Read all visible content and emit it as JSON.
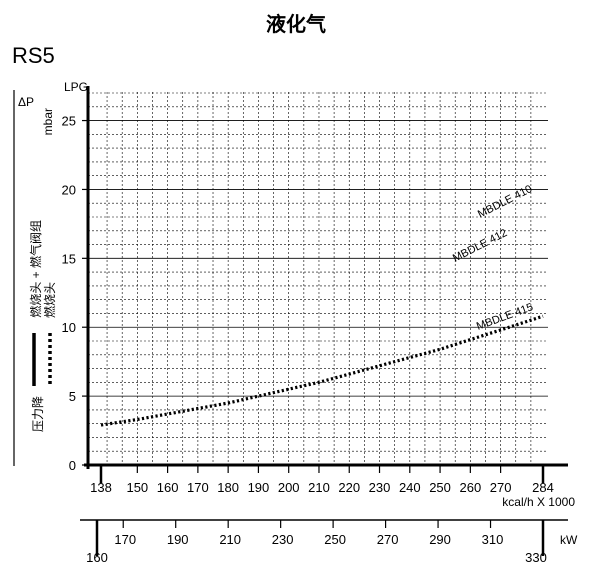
{
  "title": "液化气",
  "model": "RS5",
  "fuel_label": "LPG",
  "y_axis_symbol": "ΔP",
  "y_axis_unit": "mbar",
  "y_side_label_line1": "燃烧头 + 燃气阀组",
  "y_side_label_line2": "燃烧头",
  "y_side_label_line3": "压力降",
  "chart_data": {
    "type": "line",
    "title": "液化气",
    "x": {
      "label": "kcal/h X 1000",
      "range": [
        138,
        284
      ],
      "ticks": [
        138,
        150,
        160,
        170,
        180,
        190,
        200,
        210,
        220,
        230,
        240,
        250,
        260,
        270,
        284
      ]
    },
    "x2": {
      "label": "kW",
      "range": [
        160,
        330
      ],
      "ticks": [
        160,
        170,
        190,
        210,
        230,
        250,
        270,
        290,
        310,
        330
      ]
    },
    "y": {
      "label": "mbar",
      "range": [
        0,
        27
      ],
      "ticks": [
        0,
        5,
        10,
        15,
        20,
        25
      ]
    },
    "grid": true,
    "series": [
      {
        "name": "MBDLE 415",
        "style": "dotted",
        "x": [
          138,
          150,
          160,
          170,
          180,
          190,
          200,
          210,
          220,
          230,
          240,
          250,
          260,
          270,
          284
        ],
        "values": [
          2.9,
          3.3,
          3.7,
          4.1,
          4.5,
          5.0,
          5.5,
          6.0,
          6.6,
          7.2,
          7.8,
          8.4,
          9.1,
          9.8,
          10.8
        ]
      }
    ],
    "curve_labels": [
      "MBDLE 410",
      "MBDLE 412",
      "MBDLE 415"
    ]
  },
  "colors": {
    "ink": "#000000",
    "background": "#ffffff"
  }
}
